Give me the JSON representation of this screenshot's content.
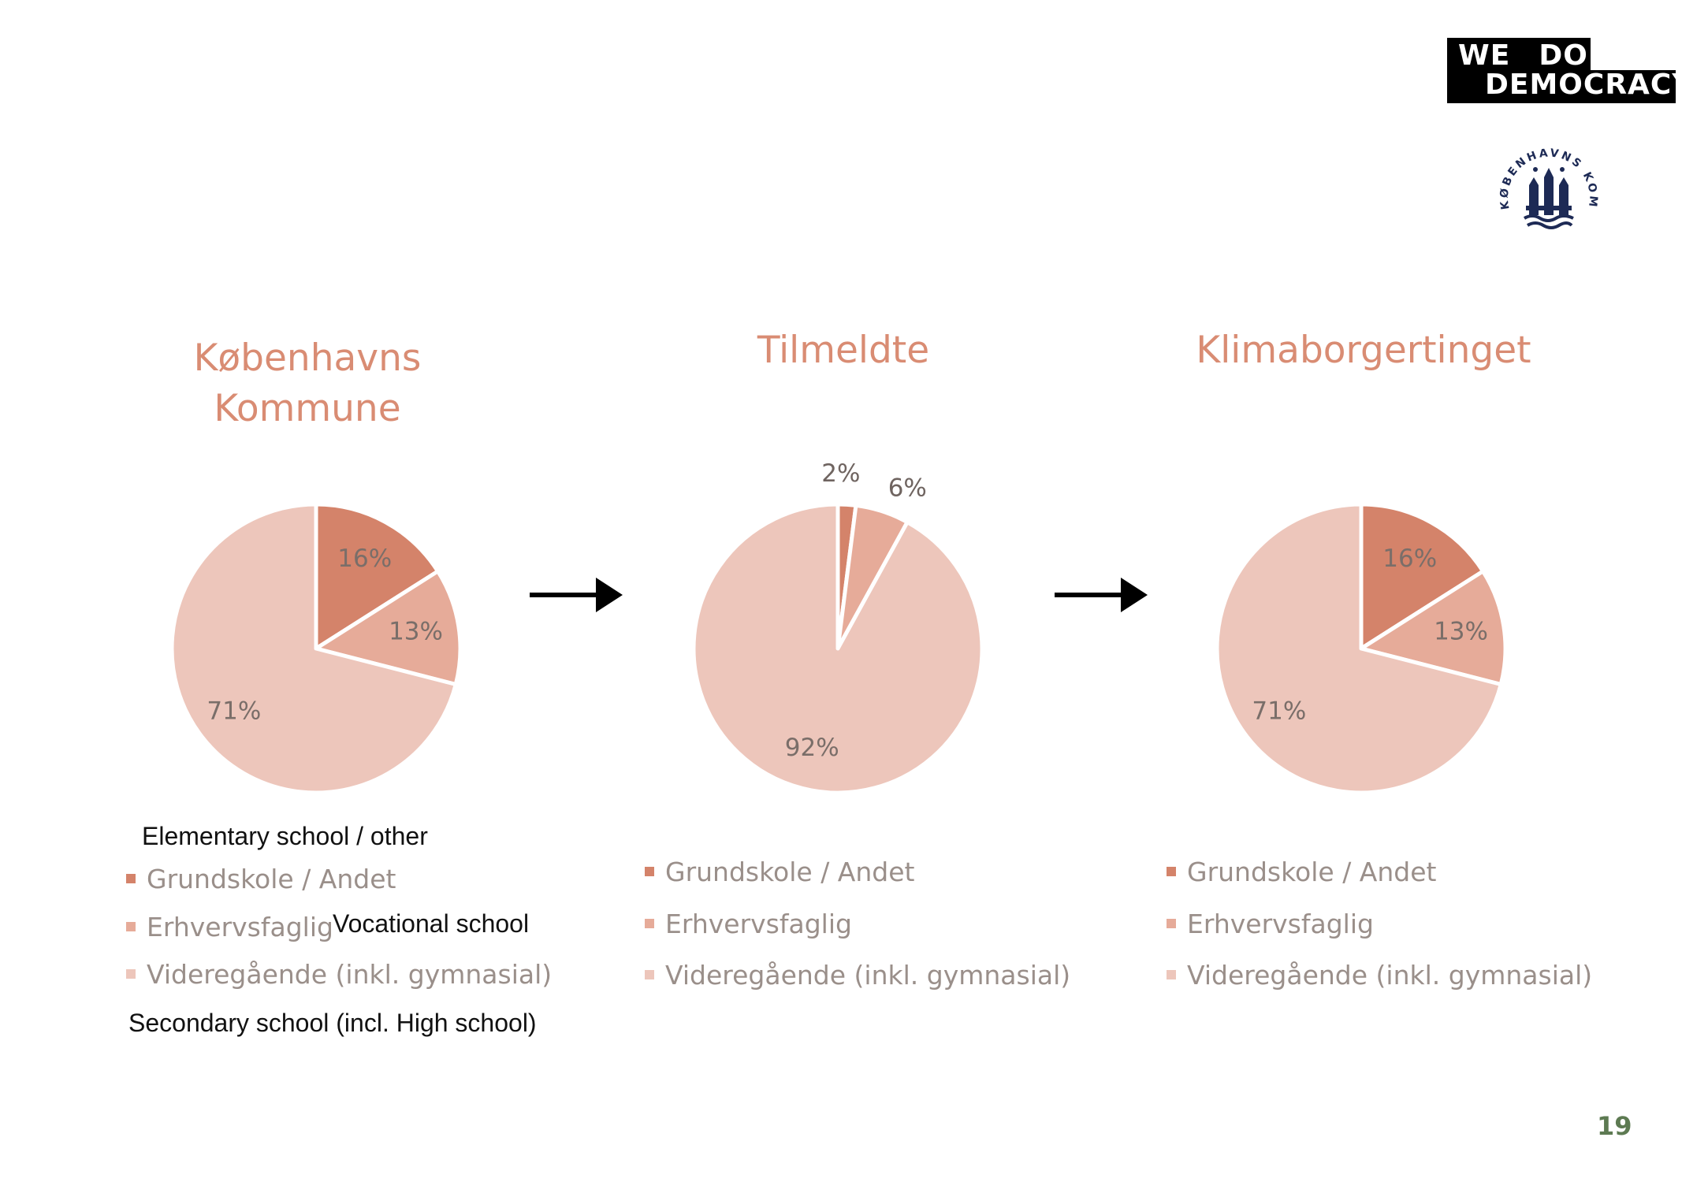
{
  "logo": {
    "line1a": "WE",
    "line1b": "DO",
    "line2": "DEMOCRACY"
  },
  "seal": {
    "text": "KØBENHAVNS KOMMUNE"
  },
  "colors": {
    "grundskole": "#d4836a",
    "erhvervsfaglig": "#e6ab99",
    "videregaende": "#edc6bb",
    "title": "#d98c73"
  },
  "chart_data": [
    {
      "type": "pie",
      "title": "Københavns Kommune",
      "title_lines": [
        "Københavns",
        "Kommune"
      ],
      "categories": [
        "Grundskole / Andet",
        "Erhvervsfaglig",
        "Videregående (inkl. gymnasial)"
      ],
      "values": [
        16,
        13,
        71
      ],
      "labels": [
        "16%",
        "13%",
        "71%"
      ],
      "legend": "bottom"
    },
    {
      "type": "pie",
      "title": "Tilmeldte",
      "title_lines": [
        "Tilmeldte"
      ],
      "categories": [
        "Grundskole / Andet",
        "Erhvervsfaglig",
        "Videregående (inkl. gymnasial)"
      ],
      "values": [
        2,
        6,
        92
      ],
      "labels": [
        "2%",
        "6%",
        "92%"
      ],
      "legend": "bottom"
    },
    {
      "type": "pie",
      "title": "Klimaborgertinget",
      "title_lines": [
        "Klimaborgertinget"
      ],
      "categories": [
        "Grundskole / Andet",
        "Erhvervsfaglig",
        "Videregående (inkl. gymnasial)"
      ],
      "values": [
        16,
        13,
        71
      ],
      "labels": [
        "16%",
        "13%",
        "71%"
      ],
      "legend": "bottom"
    }
  ],
  "annotations": {
    "elementary": "Elementary school / other",
    "vocational": "Vocational school",
    "secondary": "Secondary school (incl. High school)"
  },
  "page_number": "19"
}
